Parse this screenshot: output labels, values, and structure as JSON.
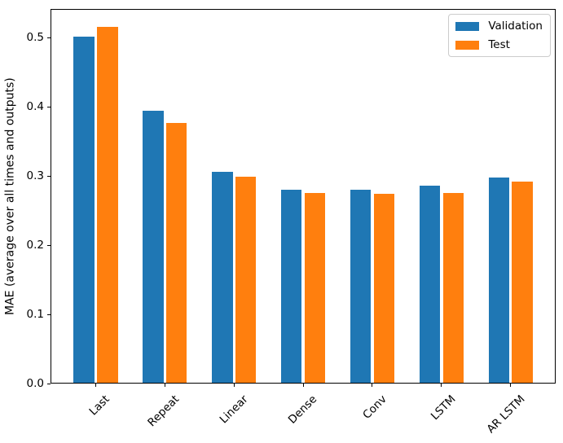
{
  "chart_data": {
    "type": "bar",
    "title": "",
    "xlabel": "",
    "ylabel": "MAE (average over all times and outputs)",
    "categories": [
      "Last",
      "Repeat",
      "Linear",
      "Dense",
      "Conv",
      "LSTM",
      "AR LSTM"
    ],
    "series": [
      {
        "name": "Validation",
        "color": "#1f77b4",
        "values": [
          0.501,
          0.395,
          0.306,
          0.28,
          0.28,
          0.286,
          0.298
        ]
      },
      {
        "name": "Test",
        "color": "#ff7f0e",
        "values": [
          0.516,
          0.377,
          0.299,
          0.276,
          0.274,
          0.276,
          0.292
        ]
      }
    ],
    "yticks": [
      0.0,
      0.1,
      0.2,
      0.3,
      0.4,
      0.5
    ],
    "ytick_labels": [
      "0.0",
      "0.1",
      "0.2",
      "0.3",
      "0.4",
      "0.5"
    ],
    "ylim": [
      0,
      0.5415
    ],
    "bar_width": 0.3,
    "bar_offset": 0.17,
    "x_tick_rotation": 45,
    "grid": false,
    "legend_position": "upper right"
  },
  "figure": {
    "background": "#ffffff",
    "spine_color": "#000000"
  }
}
